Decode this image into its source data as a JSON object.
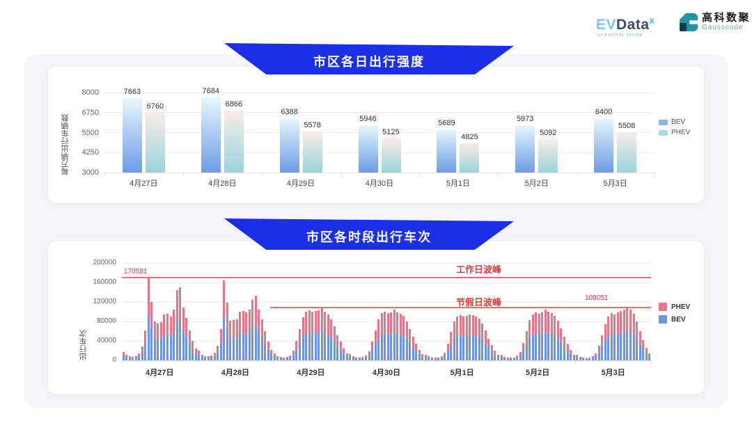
{
  "header": {
    "evdata_logo": {
      "ev": "EV",
      "data": "Data",
      "sup": "X",
      "sub_left": "SHANGHAI",
      "sub_right": "CHINA"
    },
    "gausscode_logo": {
      "cn": "高科数聚",
      "en": "Gausscode"
    }
  },
  "colors": {
    "banner_blue": "#1b2fe8",
    "bev_gradient_top": "#e6f7fd",
    "bev_gradient_bottom": "#6d9ce6",
    "phev_gradient_top": "#f9ece8",
    "phev_gradient_bottom": "#99d5db",
    "legend_bev": "#8ab6ea",
    "legend_phev": "#a8dce2",
    "stack_phev": "#e4768c",
    "stack_bev": "#6b95e0",
    "annotation_red": "#e23c3c",
    "peak_line_red": "#e87070",
    "grid": "#ececec",
    "axis_text": "#666666",
    "value_label": "#333333"
  },
  "chart_data": [
    {
      "type": "bar",
      "title": "市区各日出行强度",
      "ylabel": "每万辆出行车辆数",
      "ylim": [
        3000,
        8000
      ],
      "yticks": [
        3000,
        4250,
        5500,
        6750,
        8000
      ],
      "grid": true,
      "legend_position": "right",
      "categories": [
        "4月27日",
        "4月28日",
        "4月29日",
        "4月30日",
        "5月1日",
        "5月2日",
        "5月3日"
      ],
      "series": [
        {
          "name": "BEV",
          "values": [
            7663,
            7684,
            6388,
            5946,
            5689,
            5973,
            6400
          ]
        },
        {
          "name": "PHEV",
          "values": [
            6760,
            6866,
            5578,
            5125,
            4825,
            5092,
            5508
          ]
        }
      ],
      "legend": [
        "BEV",
        "PHEV"
      ]
    },
    {
      "type": "bar",
      "stacked": true,
      "title": "市区各时段出行车次",
      "ylabel": "出行车次",
      "ylim": [
        0,
        200000
      ],
      "yticks": [
        0,
        40000,
        80000,
        120000,
        160000,
        200000
      ],
      "grid": true,
      "legend_position": "right",
      "categories": [
        "4月27日",
        "4月28日",
        "4月29日",
        "4月30日",
        "5月1日",
        "5月2日",
        "5月3日"
      ],
      "bars_per_category": 24,
      "legend": [
        "PHEV",
        "BEV"
      ],
      "bev_share_estimate": 0.55,
      "values_by_day_estimate": [
        [
          17000,
          11000,
          8000,
          7000,
          9000,
          15000,
          28000,
          62000,
          170581,
          120000,
          80000,
          76000,
          78000,
          95000,
          96000,
          90000,
          105000,
          145000,
          150000,
          108000,
          87000,
          62000,
          40000,
          25000
        ],
        [
          20000,
          12000,
          9000,
          8000,
          10000,
          16000,
          30000,
          65000,
          165000,
          118000,
          82000,
          83000,
          85000,
          100000,
          101000,
          98000,
          105000,
          125000,
          133000,
          104000,
          85000,
          60000,
          38000,
          22000
        ],
        [
          15000,
          9000,
          7000,
          6000,
          7000,
          10000,
          20000,
          40000,
          65000,
          88000,
          100000,
          103000,
          100000,
          102000,
          103000,
          107000,
          100000,
          95000,
          85000,
          70000,
          52000,
          38000,
          25000,
          15000
        ],
        [
          13000,
          8000,
          6500,
          6000,
          7000,
          10000,
          18000,
          38000,
          62000,
          85000,
          97000,
          100000,
          97000,
          99000,
          105000,
          98000,
          96000,
          92000,
          80000,
          65000,
          48000,
          34000,
          22000,
          13000
        ],
        [
          12000,
          8000,
          6000,
          5500,
          6500,
          9000,
          16000,
          34000,
          58000,
          80000,
          90000,
          93000,
          90000,
          92000,
          95000,
          93000,
          90000,
          86000,
          76000,
          62000,
          45000,
          32000,
          20000,
          12000
        ],
        [
          12000,
          7500,
          6000,
          5500,
          6500,
          9500,
          17000,
          36000,
          60000,
          83000,
          95000,
          99000,
          96000,
          98000,
          104000,
          100000,
          97000,
          92000,
          82000,
          66000,
          48000,
          34000,
          21000,
          12000
        ],
        [
          11000,
          7000,
          5500,
          5000,
          6000,
          9000,
          15000,
          30000,
          52000,
          75000,
          90000,
          97000,
          95000,
          98000,
          102000,
          105000,
          108051,
          104000,
          96000,
          80000,
          60000,
          42000,
          26000,
          14000
        ]
      ],
      "annotations": {
        "workday_peak": {
          "label": "工作日波峰",
          "value_label": "170581",
          "value": 170581
        },
        "holiday_peak": {
          "label": "节假日波峰",
          "value_label": "108051",
          "value": 108051
        }
      }
    }
  ]
}
